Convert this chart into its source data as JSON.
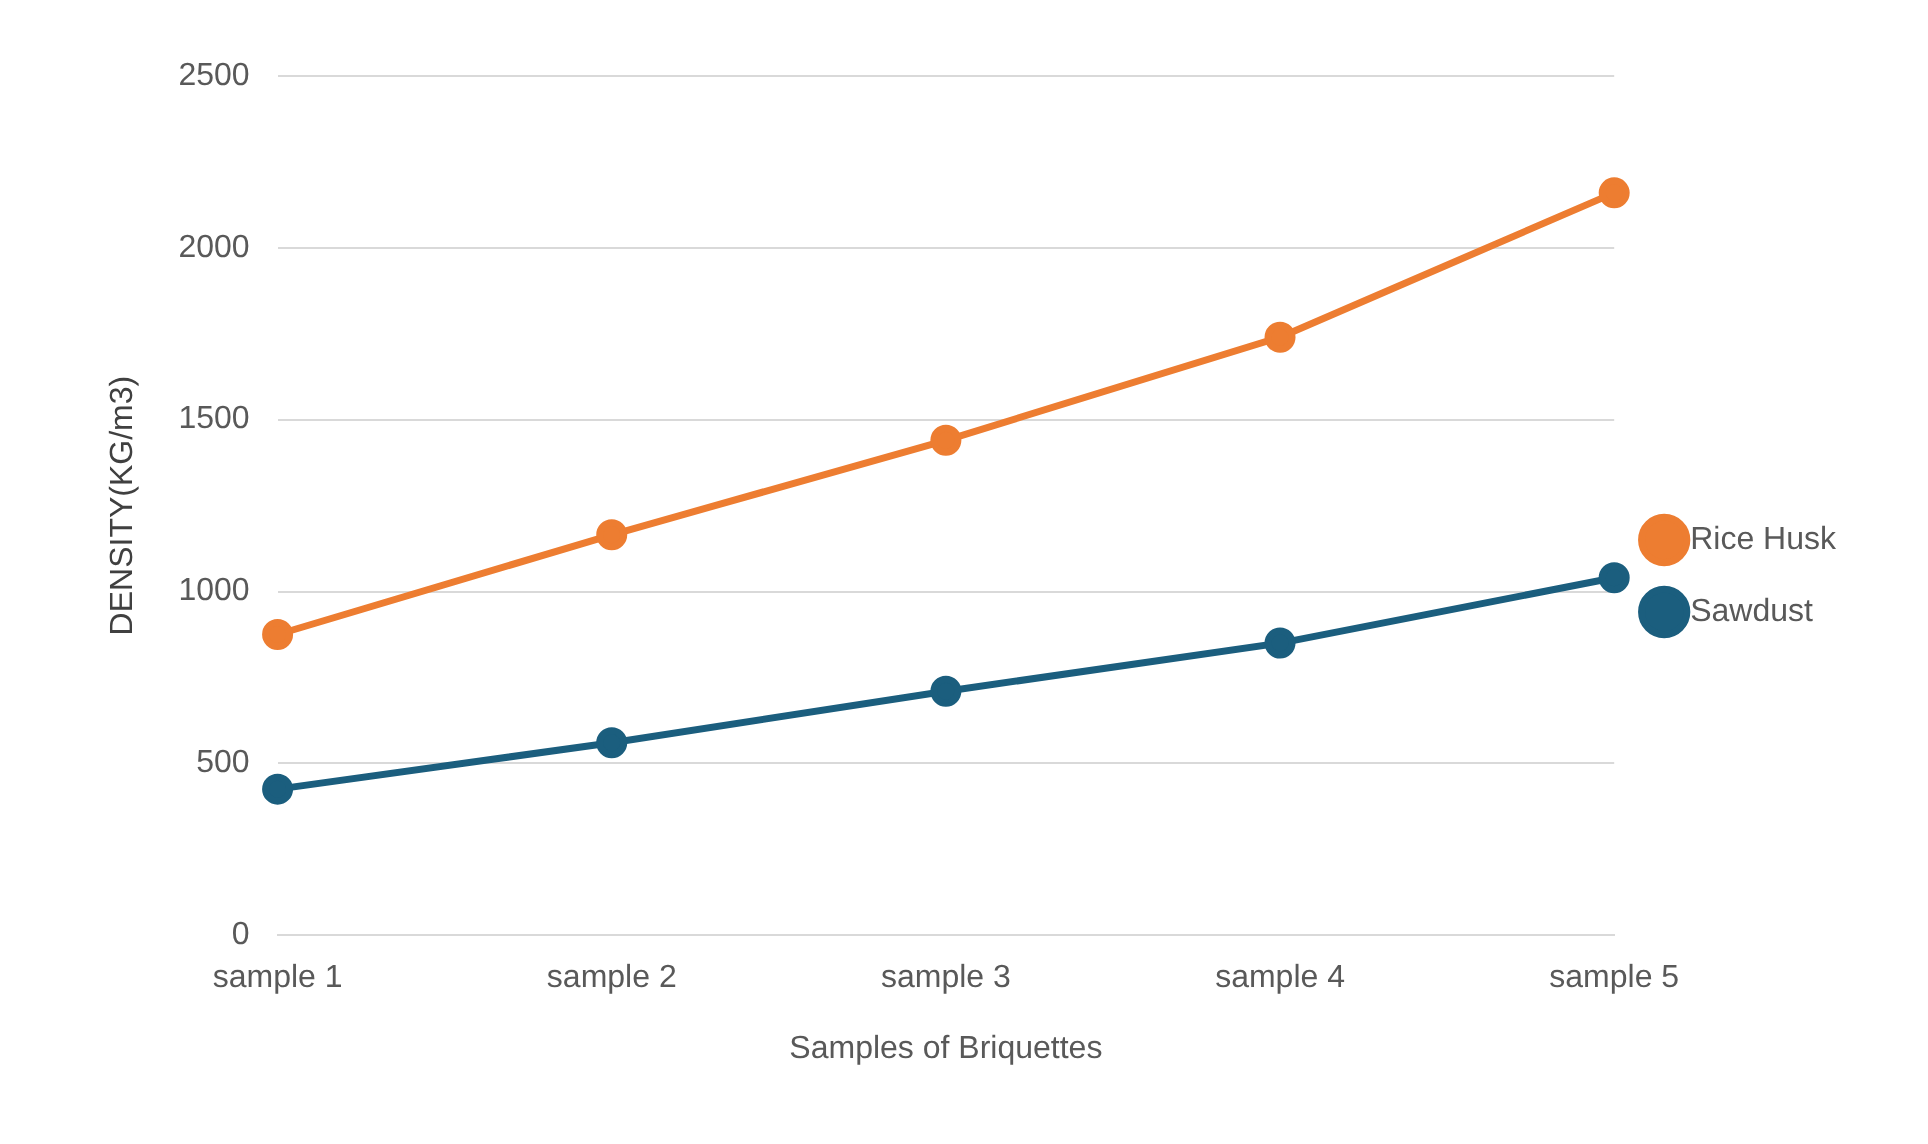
{
  "chart_data": {
    "type": "line",
    "xlabel": "Samples of Briquettes",
    "ylabel": "DENSITY(KG/m3)",
    "categories": [
      "sample 1",
      "sample 2",
      "sample 3",
      "sample 4",
      "sample 5"
    ],
    "series": [
      {
        "name": "Rice Husk",
        "color": "#ed7d31",
        "values": [
          875,
          1165,
          1440,
          1740,
          2160
        ]
      },
      {
        "name": "Sawdust",
        "color": "#1b5e7e",
        "values": [
          425,
          560,
          710,
          850,
          1040
        ]
      }
    ],
    "ylim": [
      0,
      2500
    ],
    "yticks": [
      0,
      500,
      1000,
      1500,
      2000,
      2500
    ],
    "grid": "y",
    "legend": "right",
    "marker": "circle",
    "line_style": "solid"
  }
}
